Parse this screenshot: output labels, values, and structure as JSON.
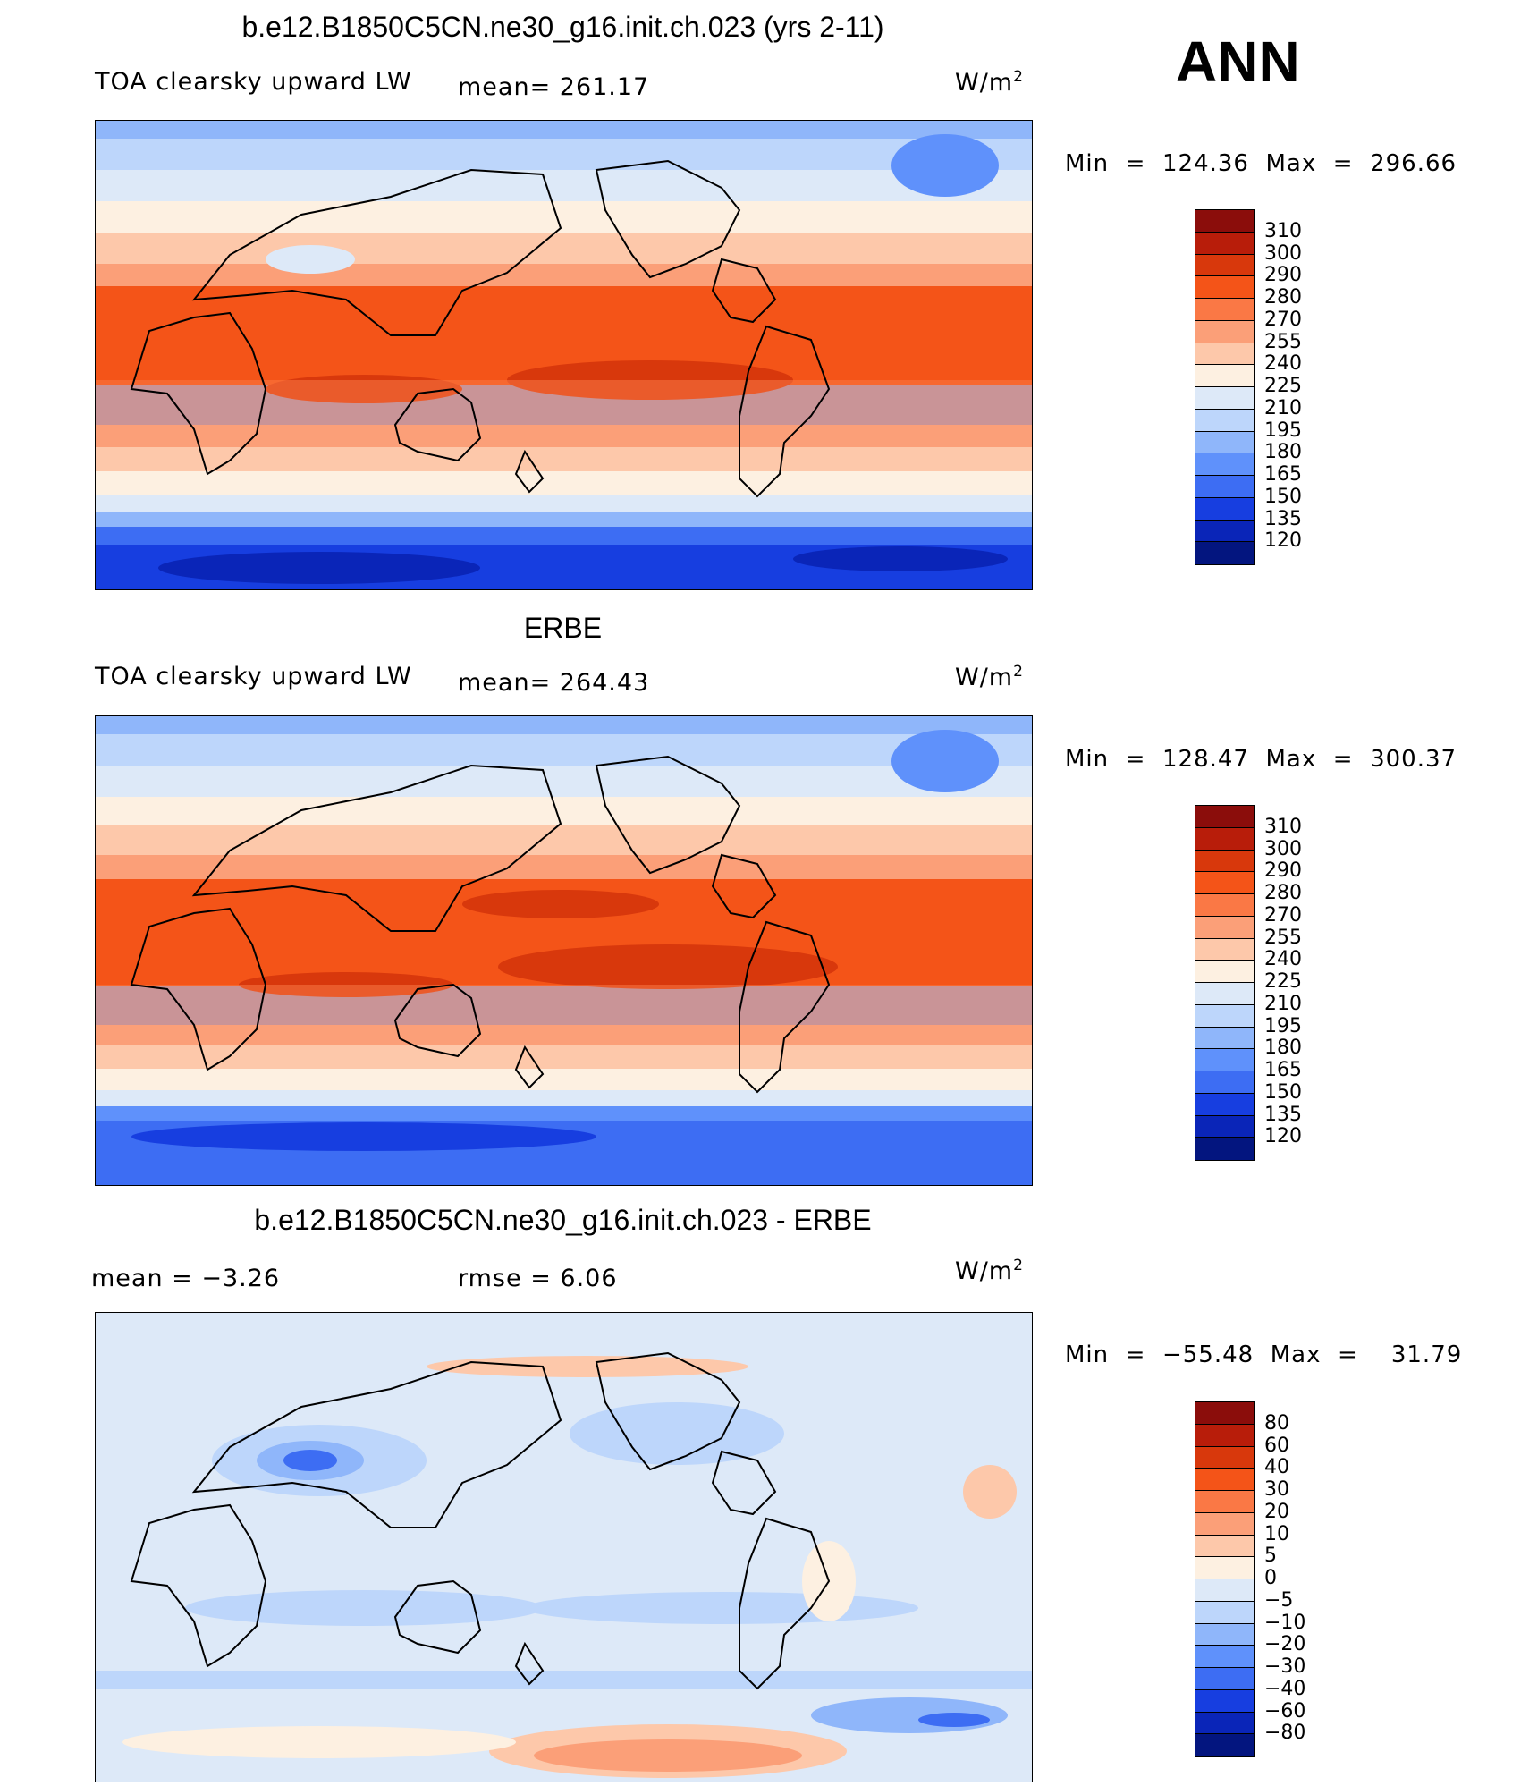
{
  "season": "ANN",
  "units_text": "W/m",
  "units_exp": "2",
  "panels": [
    {
      "title": "b.e12.B1850C5CN.ne30_g16.init.ch.023 (yrs 2-11)",
      "variable": "TOA clearsky upward LW",
      "stat": "mean= 261.17",
      "minmax": "Min  =  124.36  Max  =  296.66",
      "kind": "abs",
      "colors": [
        "#8b0d0b",
        "#b81d0a",
        "#d8380c",
        "#f45418",
        "#fa7845",
        "#fb9f78",
        "#fdc8aa",
        "#fdf0e1",
        "#dde9f8",
        "#bdd6fb",
        "#8fb6fa",
        "#5f91fb",
        "#3d6df3",
        "#173ee0",
        "#0a25b8",
        "#03157f"
      ],
      "labels": [
        "310",
        "300",
        "290",
        "280",
        "270",
        "255",
        "240",
        "225",
        "210",
        "195",
        "180",
        "165",
        "150",
        "135",
        "120"
      ]
    },
    {
      "title": "ERBE",
      "variable": "TOA clearsky upward LW",
      "stat": "mean= 264.43",
      "minmax": "Min  =  128.47  Max  =  300.37",
      "kind": "abs",
      "colors": [
        "#8b0d0b",
        "#b81d0a",
        "#d8380c",
        "#f45418",
        "#fa7845",
        "#fb9f78",
        "#fdc8aa",
        "#fdf0e1",
        "#dde9f8",
        "#bdd6fb",
        "#8fb6fa",
        "#5f91fb",
        "#3d6df3",
        "#173ee0",
        "#0a25b8",
        "#03157f"
      ],
      "labels": [
        "310",
        "300",
        "290",
        "280",
        "270",
        "255",
        "240",
        "225",
        "210",
        "195",
        "180",
        "165",
        "150",
        "135",
        "120"
      ]
    },
    {
      "title": "b.e12.B1850C5CN.ne30_g16.init.ch.023 - ERBE",
      "variable": "mean =   −3.26",
      "stat": "rmse =    6.06",
      "minmax": "Min  =  −55.48  Max  =    31.79",
      "kind": "diff",
      "colors": [
        "#8b0d0b",
        "#b81d0a",
        "#d8380c",
        "#f45418",
        "#fa7845",
        "#fb9f78",
        "#fdc8aa",
        "#fdf0e1",
        "#dde9f8",
        "#bdd6fb",
        "#8fb6fa",
        "#5f91fb",
        "#3d6df3",
        "#173ee0",
        "#0a25b8",
        "#03157f"
      ],
      "labels": [
        "80",
        "60",
        "40",
        "30",
        "20",
        "10",
        "5",
        "0",
        "−5",
        "−10",
        "−20",
        "−30",
        "−40",
        "−60",
        "−80"
      ]
    }
  ]
}
